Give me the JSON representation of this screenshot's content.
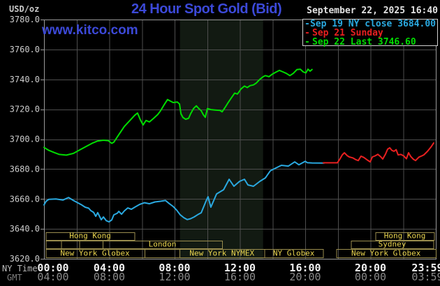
{
  "header": {
    "units_label": "USD/oz",
    "title": "24 Hour Spot Gold (Bid)",
    "datetime": "September 22, 2025 16:40",
    "watermark": "www.kitco.com"
  },
  "legend": {
    "items": [
      {
        "label": "Sep 19 NY close 3684.00",
        "color": "#2aa9e0"
      },
      {
        "label": "Sep 21 Sunday",
        "color": "#e82020"
      },
      {
        "label": "Sep 22 Last 3746.60",
        "color": "#00dd00"
      }
    ]
  },
  "axes": {
    "y": {
      "min": 3620,
      "max": 3780,
      "step": 20,
      "label_format": "one_decimal"
    },
    "x_ny": {
      "name": "NY Time",
      "labels": [
        "00:00",
        "04:00",
        "08:00",
        "12:00",
        "16:00",
        "20:00",
        "23:59"
      ],
      "hours": [
        0,
        4,
        8,
        12,
        16,
        20,
        23.983
      ]
    },
    "x_gmt": {
      "name": "GMT",
      "labels": [
        "04:00",
        "08:00",
        "12:00",
        "16:00",
        "20:00",
        "00:00",
        "03:59"
      ],
      "hours": [
        0,
        4,
        8,
        12,
        16,
        20,
        23.983
      ]
    }
  },
  "sessions": [
    {
      "row": 0,
      "start_h": 0.1,
      "end_h": 5.55,
      "label": "Hong Kong"
    },
    {
      "row": 0,
      "start_h": 20.3,
      "end_h": 23.9,
      "label": "Hong Kong"
    },
    {
      "row": 1,
      "start_h": 0.1,
      "end_h": 1.05,
      "label": ""
    },
    {
      "row": 1,
      "start_h": 1.05,
      "end_h": 2.15,
      "label": ""
    },
    {
      "row": 1,
      "start_h": 2.15,
      "end_h": 3.6,
      "label": ""
    },
    {
      "row": 1,
      "start_h": 3.6,
      "end_h": 10.9,
      "label": "London"
    },
    {
      "row": 1,
      "start_h": 18.8,
      "end_h": 23.85,
      "label": "Sydney"
    },
    {
      "row": 2,
      "start_h": 0.1,
      "end_h": 6.15,
      "label": "New York Globex"
    },
    {
      "row": 2,
      "start_h": 6.15,
      "end_h": 8.3,
      "label": ""
    },
    {
      "row": 2,
      "start_h": 8.3,
      "end_h": 13.5,
      "label": "New York NYMEX"
    },
    {
      "row": 2,
      "start_h": 13.5,
      "end_h": 17.1,
      "label": "NY Globex"
    },
    {
      "row": 2,
      "start_h": 17.9,
      "end_h": 24.0,
      "label": "New York Globex"
    }
  ],
  "colors": {
    "background": "#000000",
    "grid": "#4e4e4e",
    "plot_border": "#9a9a9a",
    "shaded_band": "#121a12",
    "session_border": "#9a8d4e",
    "session_label": "#ead54f",
    "title_blue": "#3c49d8"
  },
  "chart_data": {
    "type": "line",
    "title": "24 Hour Spot Gold (Bid)",
    "ylabel": "USD/oz",
    "ylim": [
      3620,
      3780
    ],
    "xlim_hours": [
      0,
      24
    ],
    "grid": true,
    "legend_position": "top-right",
    "shaded_band_hours": [
      8.33,
      13.42
    ],
    "series": [
      {
        "name": "Sep 22 Last 3746.60",
        "color": "#00dd00",
        "points": [
          [
            0.0,
            3694.5
          ],
          [
            0.3,
            3692.5
          ],
          [
            0.64,
            3691
          ],
          [
            0.94,
            3689.8
          ],
          [
            1.37,
            3689.3
          ],
          [
            1.8,
            3690.5
          ],
          [
            2.22,
            3693
          ],
          [
            2.65,
            3695.5
          ],
          [
            2.99,
            3697.5
          ],
          [
            3.29,
            3698.8
          ],
          [
            3.64,
            3699.3
          ],
          [
            3.94,
            3699
          ],
          [
            4.15,
            3697.2
          ],
          [
            4.28,
            3698
          ],
          [
            4.58,
            3703
          ],
          [
            4.92,
            3708.5
          ],
          [
            5.26,
            3712.5
          ],
          [
            5.56,
            3716
          ],
          [
            5.73,
            3717.5
          ],
          [
            5.9,
            3713
          ],
          [
            6.07,
            3709.5
          ],
          [
            6.25,
            3712.5
          ],
          [
            6.46,
            3711.5
          ],
          [
            6.72,
            3714
          ],
          [
            6.97,
            3716.5
          ],
          [
            7.14,
            3719
          ],
          [
            7.36,
            3723
          ],
          [
            7.57,
            3726.5
          ],
          [
            7.91,
            3724.5
          ],
          [
            8.17,
            3724.8
          ],
          [
            8.3,
            3723.5
          ],
          [
            8.39,
            3717
          ],
          [
            8.51,
            3714.5
          ],
          [
            8.68,
            3713.3
          ],
          [
            8.86,
            3714
          ],
          [
            8.98,
            3717
          ],
          [
            9.16,
            3720.5
          ],
          [
            9.33,
            3722.3
          ],
          [
            9.45,
            3720.8
          ],
          [
            9.63,
            3719
          ],
          [
            9.75,
            3716.5
          ],
          [
            9.88,
            3714.6
          ],
          [
            10.01,
            3720.5
          ],
          [
            10.22,
            3719.8
          ],
          [
            10.48,
            3719.5
          ],
          [
            10.78,
            3719.2
          ],
          [
            10.91,
            3718.3
          ],
          [
            11.08,
            3721
          ],
          [
            11.25,
            3724
          ],
          [
            11.47,
            3727.5
          ],
          [
            11.68,
            3730.8
          ],
          [
            11.85,
            3730.2
          ],
          [
            12.06,
            3733.5
          ],
          [
            12.28,
            3735.5
          ],
          [
            12.45,
            3734.5
          ],
          [
            12.62,
            3735.8
          ],
          [
            12.83,
            3736.3
          ],
          [
            13.0,
            3737.5
          ],
          [
            13.22,
            3740
          ],
          [
            13.43,
            3741.8
          ],
          [
            13.56,
            3742.5
          ],
          [
            13.78,
            3741.8
          ],
          [
            13.99,
            3743.5
          ],
          [
            14.2,
            3744.8
          ],
          [
            14.42,
            3746
          ],
          [
            14.63,
            3745
          ],
          [
            14.84,
            3744
          ],
          [
            15.06,
            3742.5
          ],
          [
            15.27,
            3744
          ],
          [
            15.49,
            3746.5
          ],
          [
            15.7,
            3746.8
          ],
          [
            15.87,
            3745
          ],
          [
            16.04,
            3744.3
          ],
          [
            16.17,
            3746.8
          ],
          [
            16.3,
            3745.5
          ],
          [
            16.42,
            3746.6
          ]
        ]
      },
      {
        "name": "Sep 19 NY close 3684.00",
        "color": "#2aa9e0",
        "points": [
          [
            0.0,
            3656
          ],
          [
            0.13,
            3658.5
          ],
          [
            0.3,
            3659.8
          ],
          [
            0.73,
            3660
          ],
          [
            1.16,
            3659.3
          ],
          [
            1.5,
            3661
          ],
          [
            1.8,
            3659
          ],
          [
            2.01,
            3657.8
          ],
          [
            2.31,
            3656
          ],
          [
            2.52,
            3654.5
          ],
          [
            2.74,
            3653.8
          ],
          [
            2.87,
            3652.2
          ],
          [
            3.04,
            3651
          ],
          [
            3.17,
            3648.4
          ],
          [
            3.29,
            3650.9
          ],
          [
            3.51,
            3646.1
          ],
          [
            3.64,
            3648
          ],
          [
            3.81,
            3645.5
          ],
          [
            3.98,
            3644.7
          ],
          [
            4.15,
            3646
          ],
          [
            4.28,
            3649.4
          ],
          [
            4.49,
            3650.5
          ],
          [
            4.58,
            3651.7
          ],
          [
            4.75,
            3649.8
          ],
          [
            4.92,
            3652
          ],
          [
            5.13,
            3654
          ],
          [
            5.35,
            3653.1
          ],
          [
            5.56,
            3654.5
          ],
          [
            5.86,
            3656.4
          ],
          [
            6.16,
            3657.5
          ],
          [
            6.46,
            3656.8
          ],
          [
            6.8,
            3658
          ],
          [
            7.14,
            3658.5
          ],
          [
            7.44,
            3659
          ],
          [
            7.66,
            3657
          ],
          [
            7.91,
            3655
          ],
          [
            8.13,
            3652.5
          ],
          [
            8.34,
            3649.5
          ],
          [
            8.56,
            3647.5
          ],
          [
            8.77,
            3646.2
          ],
          [
            8.98,
            3646.8
          ],
          [
            9.2,
            3648
          ],
          [
            9.41,
            3649.5
          ],
          [
            9.63,
            3650.8
          ],
          [
            9.93,
            3658.7
          ],
          [
            10.05,
            3661.5
          ],
          [
            10.22,
            3654.5
          ],
          [
            10.57,
            3663.4
          ],
          [
            11.0,
            3666.2
          ],
          [
            11.34,
            3673.2
          ],
          [
            11.63,
            3668.5
          ],
          [
            11.98,
            3671.8
          ],
          [
            12.28,
            3673.2
          ],
          [
            12.49,
            3669.4
          ],
          [
            12.83,
            3668.5
          ],
          [
            13.22,
            3671.8
          ],
          [
            13.56,
            3674.1
          ],
          [
            13.86,
            3678.8
          ],
          [
            14.2,
            3680.7
          ],
          [
            14.54,
            3682.5
          ],
          [
            14.97,
            3682
          ],
          [
            15.36,
            3684.8
          ],
          [
            15.61,
            3682.9
          ],
          [
            16.0,
            3685.2
          ],
          [
            16.13,
            3684.3
          ],
          [
            16.42,
            3684.1
          ],
          [
            17.15,
            3684.0
          ]
        ]
      },
      {
        "name": "Sep 21 Sunday",
        "color": "#e82020",
        "points": [
          [
            17.11,
            3684.2
          ],
          [
            17.97,
            3684.2
          ],
          [
            18.14,
            3687
          ],
          [
            18.27,
            3689.5
          ],
          [
            18.4,
            3690.9
          ],
          [
            18.57,
            3689
          ],
          [
            18.7,
            3688.1
          ],
          [
            18.91,
            3687.5
          ],
          [
            19.12,
            3686.2
          ],
          [
            19.25,
            3685.7
          ],
          [
            19.42,
            3688.6
          ],
          [
            19.59,
            3687.8
          ],
          [
            19.81,
            3686
          ],
          [
            19.98,
            3684.8
          ],
          [
            20.11,
            3688.1
          ],
          [
            20.28,
            3688.8
          ],
          [
            20.45,
            3689.9
          ],
          [
            20.62,
            3688.3
          ],
          [
            20.75,
            3686.7
          ],
          [
            20.92,
            3690
          ],
          [
            21.05,
            3693.3
          ],
          [
            21.18,
            3694.2
          ],
          [
            21.31,
            3692.5
          ],
          [
            21.44,
            3691.9
          ],
          [
            21.57,
            3693
          ],
          [
            21.69,
            3689.5
          ],
          [
            21.86,
            3689.8
          ],
          [
            22.03,
            3688.8
          ],
          [
            22.2,
            3686.9
          ],
          [
            22.33,
            3690.9
          ],
          [
            22.46,
            3688.5
          ],
          [
            22.63,
            3686.5
          ],
          [
            22.76,
            3685.7
          ],
          [
            22.97,
            3688
          ],
          [
            23.14,
            3688.8
          ],
          [
            23.27,
            3689.5
          ],
          [
            23.49,
            3691.9
          ],
          [
            23.7,
            3694.7
          ],
          [
            23.87,
            3697.5
          ]
        ]
      }
    ]
  }
}
